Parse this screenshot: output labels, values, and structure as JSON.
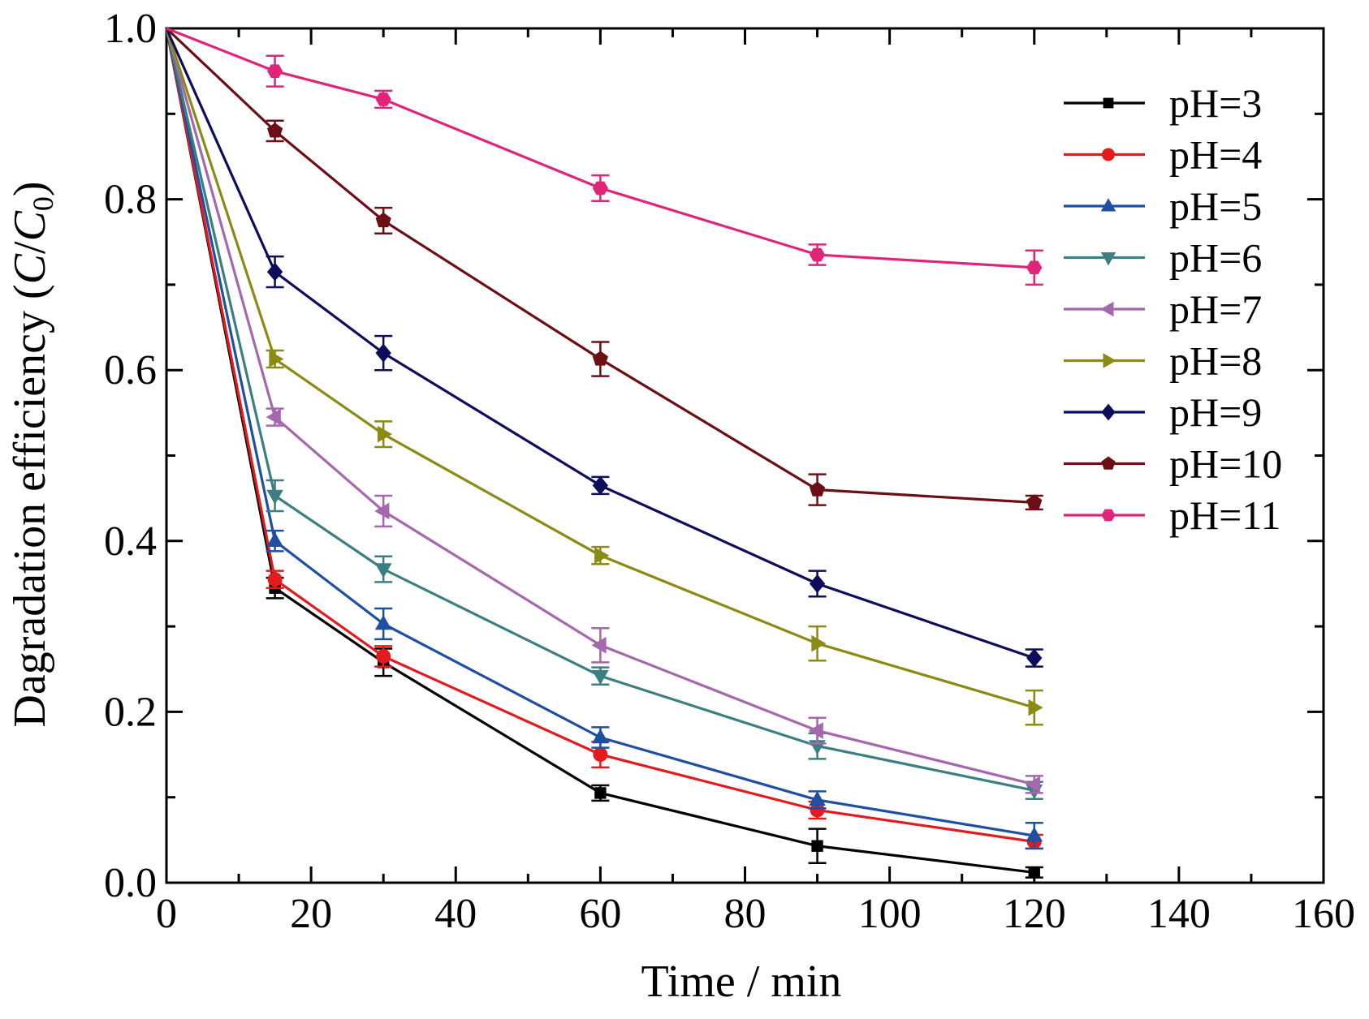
{
  "chart_data": {
    "type": "line",
    "title": "",
    "xlabel": "Time / min",
    "ylabel": {
      "prefix": "Dagradation efficiency (",
      "c": "C",
      "slash": "/",
      "c0": "C",
      "sub": "0",
      "suffix": ")"
    },
    "xlim": [
      0,
      160
    ],
    "ylim": [
      0,
      1.0
    ],
    "xticks": [
      0,
      20,
      40,
      60,
      80,
      100,
      120,
      140,
      160
    ],
    "xtick_labels": [
      "0",
      "20",
      "40",
      "60",
      "80",
      "100",
      "120",
      "140",
      "160"
    ],
    "yticks": [
      0,
      0.2,
      0.4,
      0.6,
      0.8,
      1.0
    ],
    "ytick_labels": [
      "0.0",
      "0.2",
      "0.4",
      "0.6",
      "0.8",
      "1.0"
    ],
    "grid": false,
    "legend_position": "top-right",
    "x": [
      0,
      15,
      30,
      60,
      90,
      120
    ],
    "series": [
      {
        "name": "pH=3",
        "color": "#000000",
        "marker": "square",
        "values": [
          1.0,
          0.345,
          0.258,
          0.105,
          0.043,
          0.012
        ],
        "errors": [
          0,
          0.012,
          0.016,
          0.009,
          0.02,
          0.006
        ]
      },
      {
        "name": "pH=4",
        "color": "#e41a1c",
        "marker": "circle",
        "values": [
          1.0,
          0.355,
          0.265,
          0.15,
          0.085,
          0.048
        ],
        "errors": [
          0,
          0.01,
          0.012,
          0.015,
          0.01,
          0.008
        ]
      },
      {
        "name": "pH=5",
        "color": "#1f4fa3",
        "marker": "triangle-up",
        "values": [
          1.0,
          0.4,
          0.303,
          0.17,
          0.097,
          0.055
        ],
        "errors": [
          0,
          0.012,
          0.018,
          0.012,
          0.01,
          0.015
        ]
      },
      {
        "name": "pH=6",
        "color": "#3c7f82",
        "marker": "triangle-down",
        "values": [
          1.0,
          0.453,
          0.367,
          0.242,
          0.16,
          0.108
        ],
        "errors": [
          0,
          0.018,
          0.015,
          0.01,
          0.015,
          0.01
        ]
      },
      {
        "name": "pH=7",
        "color": "#a567ad",
        "marker": "triangle-left",
        "values": [
          1.0,
          0.545,
          0.435,
          0.278,
          0.178,
          0.115
        ],
        "errors": [
          0,
          0.01,
          0.018,
          0.02,
          0.015,
          0.01
        ]
      },
      {
        "name": "pH=8",
        "color": "#8b8b14",
        "marker": "triangle-right",
        "values": [
          1.0,
          0.613,
          0.525,
          0.383,
          0.28,
          0.205
        ],
        "errors": [
          0,
          0.01,
          0.015,
          0.01,
          0.02,
          0.02
        ]
      },
      {
        "name": "pH=9",
        "color": "#0d0d5c",
        "marker": "diamond",
        "values": [
          1.0,
          0.715,
          0.62,
          0.465,
          0.35,
          0.263
        ],
        "errors": [
          0,
          0.018,
          0.02,
          0.01,
          0.015,
          0.01
        ]
      },
      {
        "name": "pH=10",
        "color": "#6b0f14",
        "marker": "pentagon",
        "values": [
          1.0,
          0.88,
          0.775,
          0.613,
          0.46,
          0.445
        ],
        "errors": [
          0,
          0.012,
          0.015,
          0.02,
          0.018,
          0.008
        ]
      },
      {
        "name": "pH=11",
        "color": "#e0247a",
        "marker": "hexagon",
        "values": [
          1.0,
          0.95,
          0.917,
          0.813,
          0.735,
          0.72
        ],
        "errors": [
          0,
          0.018,
          0.01,
          0.015,
          0.012,
          0.02
        ]
      }
    ]
  }
}
